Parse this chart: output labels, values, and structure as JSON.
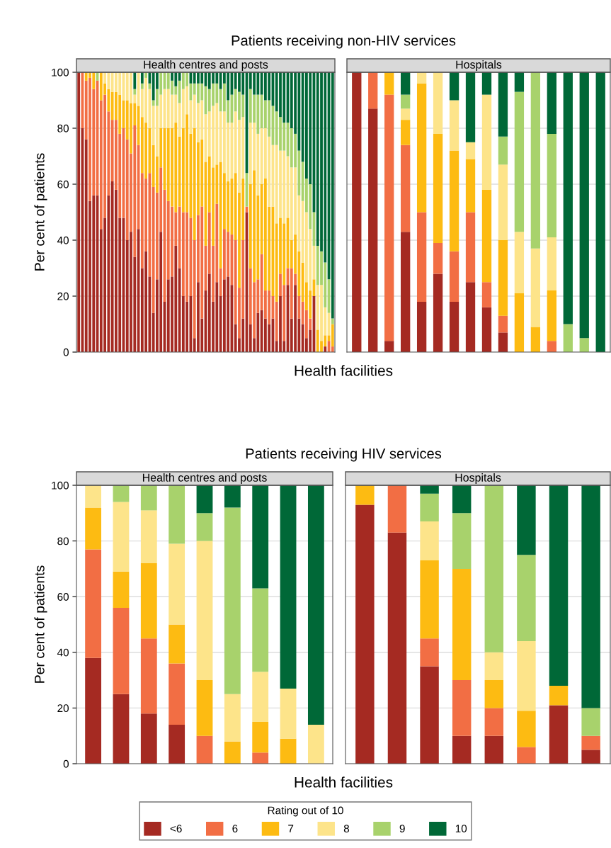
{
  "chart_data": [
    {
      "type": "bar",
      "stacked": true,
      "title": "Patients receiving non-HIV services",
      "subtitle": "Health centres and posts",
      "xlabel": "Health facilities",
      "ylabel": "Per cent of patients",
      "ylim": [
        0,
        100
      ],
      "yticks": [
        0,
        20,
        40,
        60,
        80,
        100
      ],
      "grid": "y",
      "tick_labels": "y",
      "categories": [
        null,
        null,
        null,
        null,
        null,
        null,
        null,
        null,
        null,
        null,
        null,
        null,
        null,
        null,
        null,
        null,
        null,
        null,
        null,
        null,
        null,
        null,
        null,
        null,
        null,
        null,
        null,
        null,
        null,
        null,
        null,
        null,
        null,
        null,
        null,
        null,
        null,
        null,
        null,
        null,
        null,
        null,
        null,
        null,
        null,
        null,
        null,
        null,
        null,
        null,
        null,
        null,
        null,
        null,
        null,
        null,
        null,
        null,
        null,
        null,
        null,
        null,
        null,
        null,
        null,
        null,
        null,
        null,
        null
      ],
      "series": [
        {
          "color": "#a52a22",
          "values": [
            100,
            80,
            76,
            54,
            56,
            56,
            44,
            48,
            56,
            61,
            58,
            48,
            48,
            40,
            43,
            34,
            44,
            30,
            36,
            27,
            14,
            26,
            43,
            18,
            26,
            27,
            38,
            30,
            20,
            18,
            20,
            5,
            25,
            12,
            22,
            28,
            18,
            25,
            20,
            26,
            27,
            24,
            10,
            5,
            12,
            50,
            10,
            5,
            14,
            15,
            12,
            10,
            12,
            4,
            20,
            4,
            24,
            12,
            24,
            12,
            10,
            5,
            8,
            20,
            0,
            0,
            2,
            0,
            0
          ]
        },
        {
          "color": "#f26e44",
          "values": [
            0,
            20,
            21,
            44,
            38,
            41,
            46,
            44,
            30,
            22,
            25,
            30,
            32,
            36,
            28,
            47,
            30,
            34,
            26,
            37,
            45,
            31,
            23,
            40,
            28,
            25,
            12,
            22,
            30,
            32,
            28,
            35,
            24,
            40,
            16,
            22,
            20,
            28,
            10,
            18,
            16,
            18,
            30,
            18,
            28,
            2,
            20,
            20,
            12,
            20,
            10,
            12,
            8,
            14,
            8,
            20,
            6,
            18,
            4,
            8,
            8,
            10,
            4,
            0,
            0,
            0,
            0,
            4,
            2
          ]
        },
        {
          "color": "#fdbb12",
          "values": [
            0,
            0,
            3,
            2,
            6,
            0,
            10,
            4,
            8,
            10,
            10,
            14,
            10,
            14,
            18,
            8,
            14,
            20,
            20,
            16,
            15,
            13,
            14,
            22,
            26,
            28,
            32,
            25,
            30,
            35,
            30,
            40,
            26,
            24,
            30,
            20,
            28,
            14,
            38,
            20,
            18,
            20,
            24,
            34,
            22,
            0,
            30,
            40,
            30,
            25,
            40,
            30,
            32,
            28,
            20,
            22,
            18,
            10,
            14,
            16,
            14,
            10,
            10,
            6,
            8,
            4,
            4,
            2,
            8
          ]
        },
        {
          "color": "#fde48a",
          "values": [
            0,
            0,
            0,
            0,
            0,
            0,
            0,
            4,
            6,
            7,
            7,
            8,
            10,
            10,
            11,
            3,
            12,
            10,
            16,
            14,
            14,
            18,
            12,
            14,
            14,
            12,
            10,
            12,
            14,
            10,
            12,
            12,
            14,
            14,
            17,
            16,
            22,
            22,
            18,
            22,
            21,
            20,
            22,
            26,
            22,
            0,
            22,
            17,
            22,
            20,
            18,
            25,
            22,
            28,
            24,
            26,
            22,
            26,
            24,
            20,
            22,
            25,
            22,
            12,
            16,
            20,
            10,
            8,
            0
          ]
        },
        {
          "color": "#a8d26c",
          "values": [
            0,
            0,
            0,
            0,
            0,
            3,
            0,
            0,
            0,
            0,
            0,
            0,
            0,
            0,
            0,
            2,
            0,
            2,
            2,
            2,
            2,
            6,
            8,
            6,
            6,
            5,
            3,
            8,
            6,
            5,
            6,
            4,
            7,
            6,
            10,
            8,
            8,
            7,
            8,
            10,
            8,
            10,
            8,
            10,
            8,
            12,
            12,
            10,
            14,
            12,
            10,
            13,
            14,
            12,
            12,
            10,
            12,
            14,
            12,
            16,
            14,
            12,
            16,
            12,
            14,
            12,
            16,
            12,
            2
          ]
        },
        {
          "color": "#006837",
          "values": [
            0,
            0,
            0,
            0,
            0,
            0,
            0,
            0,
            0,
            0,
            0,
            0,
            0,
            0,
            0,
            6,
            0,
            4,
            0,
            4,
            10,
            6,
            0,
            0,
            0,
            3,
            5,
            3,
            0,
            0,
            4,
            4,
            4,
            4,
            5,
            6,
            4,
            4,
            6,
            4,
            10,
            8,
            6,
            7,
            8,
            36,
            6,
            8,
            8,
            8,
            10,
            10,
            12,
            14,
            16,
            18,
            18,
            20,
            22,
            28,
            32,
            38,
            40,
            50,
            62,
            64,
            68,
            74,
            88
          ]
        }
      ]
    },
    {
      "type": "bar",
      "stacked": true,
      "subtitle": "Hospitals",
      "ylim": [
        0,
        100
      ],
      "yticks": [
        0,
        20,
        40,
        60,
        80,
        100
      ],
      "grid": "y",
      "tick_labels": false,
      "categories": [
        null,
        null,
        null,
        null,
        null,
        null,
        null,
        null,
        null,
        null,
        null,
        null,
        null,
        null,
        null,
        null
      ],
      "series": [
        {
          "color": "#a52a22",
          "values": [
            100,
            87,
            4,
            43,
            18,
            28,
            18,
            25,
            16,
            7,
            0,
            0,
            0,
            0,
            0,
            0
          ]
        },
        {
          "color": "#f26e44",
          "values": [
            0,
            13,
            88,
            31,
            32,
            11,
            18,
            25,
            9,
            6,
            0,
            0,
            4,
            0,
            0,
            0
          ]
        },
        {
          "color": "#fdbb12",
          "values": [
            0,
            0,
            8,
            9,
            46,
            39,
            36,
            19,
            33,
            27,
            21,
            9,
            18,
            0,
            0,
            0
          ]
        },
        {
          "color": "#fde48a",
          "values": [
            0,
            0,
            0,
            4,
            4,
            22,
            18,
            6,
            34,
            27,
            22,
            28,
            19,
            0,
            0,
            0
          ]
        },
        {
          "color": "#a8d26c",
          "values": [
            0,
            0,
            0,
            5,
            0,
            0,
            0,
            0,
            0,
            10,
            50,
            63,
            37,
            10,
            5,
            0
          ]
        },
        {
          "color": "#006837",
          "values": [
            0,
            0,
            0,
            8,
            0,
            0,
            10,
            25,
            8,
            23,
            7,
            0,
            22,
            90,
            95,
            100
          ]
        }
      ]
    },
    {
      "type": "bar",
      "stacked": true,
      "title": "Patients receiving HIV services",
      "subtitle": "Health centres and posts",
      "xlabel": "Health facilities",
      "ylabel": "Per cent of patients",
      "ylim": [
        0,
        100
      ],
      "yticks": [
        0,
        20,
        40,
        60,
        80,
        100
      ],
      "grid": "y",
      "tick_labels": "y",
      "legend": "bottom",
      "legend_title": "Rating out of 10",
      "categories": [
        null,
        null,
        null,
        null,
        null,
        null,
        null,
        null,
        null
      ],
      "series": [
        {
          "name": "<6",
          "color": "#a52a22",
          "values": [
            38,
            25,
            18,
            14,
            0,
            0,
            0,
            0,
            0
          ]
        },
        {
          "name": "6",
          "color": "#f26e44",
          "values": [
            39,
            31,
            27,
            22,
            10,
            0,
            4,
            0,
            0
          ]
        },
        {
          "name": "7",
          "color": "#fdbb12",
          "values": [
            15,
            13,
            27,
            14,
            20,
            8,
            11,
            9,
            0
          ]
        },
        {
          "name": "8",
          "color": "#fde48a",
          "values": [
            8,
            25,
            19,
            29,
            50,
            17,
            18,
            18,
            14
          ]
        },
        {
          "name": "9",
          "color": "#a8d26c",
          "values": [
            0,
            6,
            9,
            21,
            10,
            67,
            30,
            0,
            0
          ]
        },
        {
          "name": "10",
          "color": "#006837",
          "values": [
            0,
            0,
            0,
            0,
            10,
            8,
            37,
            73,
            86
          ]
        }
      ]
    },
    {
      "type": "bar",
      "stacked": true,
      "subtitle": "Hospitals",
      "ylim": [
        0,
        100
      ],
      "yticks": [
        0,
        20,
        40,
        60,
        80,
        100
      ],
      "grid": "y",
      "tick_labels": false,
      "categories": [
        null,
        null,
        null,
        null,
        null,
        null,
        null,
        null
      ],
      "series": [
        {
          "color": "#a52a22",
          "values": [
            93,
            83,
            35,
            10,
            10,
            0,
            21,
            5
          ]
        },
        {
          "color": "#f26e44",
          "values": [
            0,
            17,
            10,
            20,
            10,
            6,
            0,
            5
          ]
        },
        {
          "color": "#fdbb12",
          "values": [
            7,
            0,
            28,
            40,
            10,
            13,
            7,
            0
          ]
        },
        {
          "color": "#fde48a",
          "values": [
            0,
            0,
            14,
            0,
            10,
            25,
            0,
            0
          ]
        },
        {
          "color": "#a8d26c",
          "values": [
            0,
            0,
            10,
            20,
            60,
            31,
            0,
            10
          ]
        },
        {
          "color": "#006837",
          "values": [
            0,
            0,
            3,
            10,
            0,
            25,
            72,
            80
          ]
        }
      ]
    }
  ]
}
